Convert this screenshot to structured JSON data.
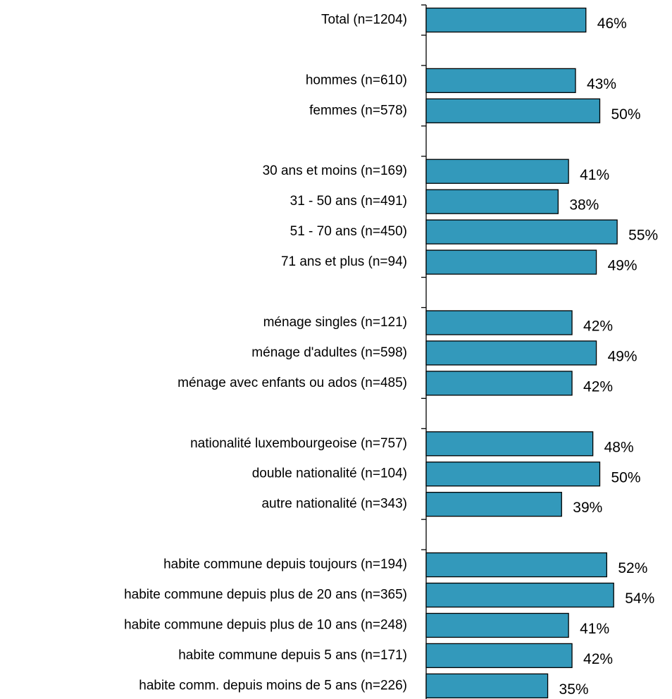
{
  "chart_data": {
    "type": "barh",
    "categories": [
      "Total (n=1204)",
      null,
      "hommes (n=610)",
      "femmes (n=578)",
      null,
      "30 ans et moins (n=169)",
      "31 - 50 ans (n=491)",
      "51 - 70 ans (n=450)",
      "71 ans et plus (n=94)",
      null,
      "ménage singles (n=121)",
      "ménage d'adultes (n=598)",
      "ménage avec enfants ou ados (n=485)",
      null,
      "nationalité luxembourgeoise (n=757)",
      "double nationalité (n=104)",
      "autre nationalité (n=343)",
      null,
      "habite commune depuis toujours (n=194)",
      "habite commune depuis plus de 20 ans (n=365)",
      "habite commune depuis plus de 10 ans (n=248)",
      "habite commune depuis 5 ans (n=171)",
      "habite comm. depuis moins de 5 ans (n=226)"
    ],
    "values": [
      46,
      null,
      43,
      50,
      null,
      41,
      38,
      55,
      49,
      null,
      42,
      49,
      42,
      null,
      48,
      50,
      39,
      null,
      52,
      54,
      41,
      42,
      35
    ],
    "value_labels": [
      "46%",
      null,
      "43%",
      "50%",
      null,
      "41%",
      "38%",
      "55%",
      "49%",
      null,
      "42%",
      "49%",
      "42%",
      null,
      "48%",
      "50%",
      "39%",
      null,
      "52%",
      "54%",
      "41%",
      "42%",
      "35%"
    ],
    "color": "#3399bb"
  }
}
